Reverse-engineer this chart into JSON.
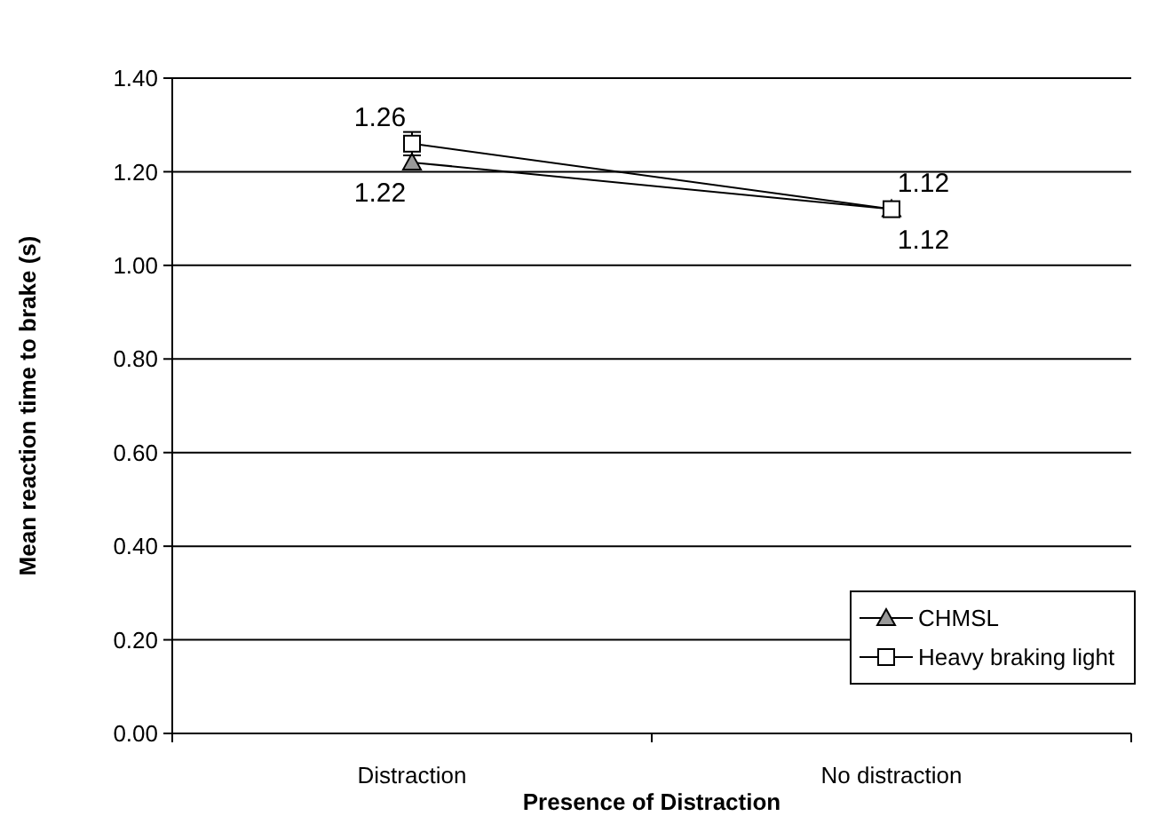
{
  "chart_data": {
    "type": "line",
    "xlabel": "Presence of Distraction",
    "ylabel": "Mean reaction time to brake (s)",
    "categories": [
      "Distraction",
      "No distraction"
    ],
    "series": [
      {
        "name": "CHMSL",
        "color": "#000000",
        "marker": "triangle",
        "values": [
          1.22,
          1.12
        ],
        "errors": [
          0.015,
          0.015
        ]
      },
      {
        "name": "Heavy braking light",
        "color": "#000000",
        "marker": "square",
        "values": [
          1.26,
          1.12
        ],
        "errors": [
          0.025,
          0.015
        ]
      }
    ],
    "ylim": [
      0,
      1.4
    ],
    "yticks": [
      {
        "value": 0,
        "label": "0.00"
      },
      {
        "value": 0.2,
        "label": "0.20"
      },
      {
        "value": 0.4,
        "label": "0.40"
      },
      {
        "value": 0.6,
        "label": "0.60"
      },
      {
        "value": 0.8,
        "label": "0.80"
      },
      {
        "value": 1,
        "label": "1.00"
      },
      {
        "value": 1.2,
        "label": "1.20"
      },
      {
        "value": 1.4,
        "label": "1.40"
      }
    ],
    "grid": "y",
    "legend": "bottom right",
    "data_labels": true,
    "line_style": "solid"
  }
}
